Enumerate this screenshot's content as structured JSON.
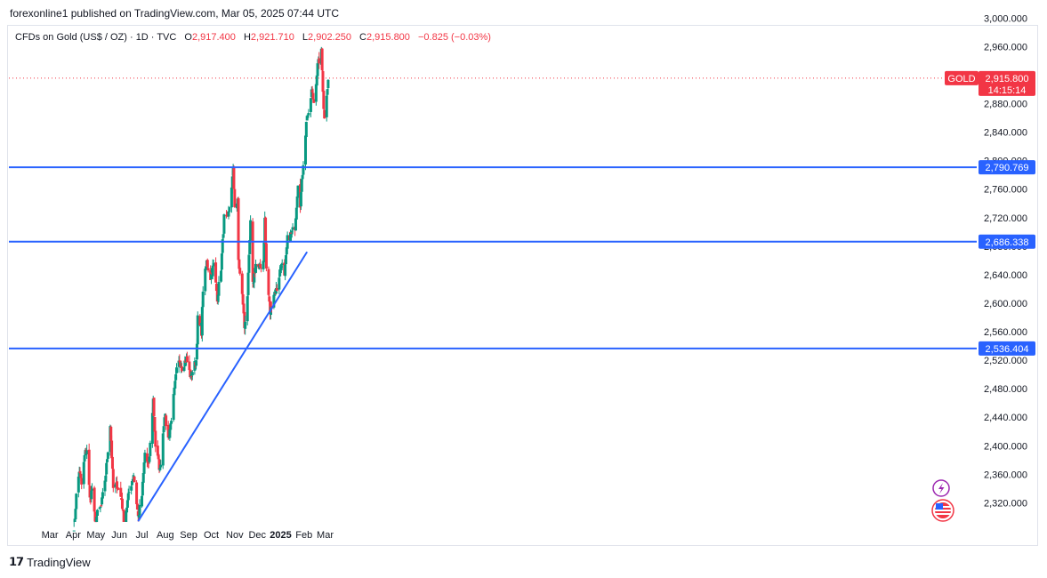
{
  "header": {
    "publisher": "forexonline1 published on TradingView.com, Mar 05, 2025 07:44 UTC"
  },
  "legend": {
    "symbol": "CFDs on Gold (US$ / OZ) · 1D · TVC",
    "o_label": "O",
    "o_value": "2,917.400",
    "h_label": "H",
    "h_value": "2,921.710",
    "l_label": "L",
    "l_value": "2,902.250",
    "c_label": "C",
    "c_value": "2,915.800",
    "change": "−0.825 (−0.03%)"
  },
  "footer": {
    "brand": "TradingView"
  },
  "colors": {
    "up": "#089981",
    "down": "#f23645",
    "level": "#2962ff",
    "level_tag": "#2962ff",
    "price_tag": "#f23645"
  },
  "chart_data": {
    "type": "candlestick",
    "instrument": "GOLD",
    "y_ticks": [
      3000,
      2960,
      2920,
      2880,
      2840,
      2800,
      2760,
      2720,
      2680,
      2640,
      2600,
      2560,
      2520,
      2480,
      2440,
      2400,
      2360,
      2320
    ],
    "y_tick_labels": [
      "3,000.000",
      "2,960.000",
      "2,920.000",
      "2,880.000",
      "2,840.000",
      "2,800.000",
      "2,760.000",
      "2,720.000",
      "2,680.000",
      "2,640.000",
      "2,600.000",
      "2,560.000",
      "2,520.000",
      "2,480.000",
      "2,440.000",
      "2,400.000",
      "2,360.000",
      "2,320.000"
    ],
    "ylim": [
      2293,
      3008
    ],
    "x_labels": [
      "Mar",
      "Apr",
      "May",
      "Jun",
      "Jul",
      "Aug",
      "Sep",
      "Oct",
      "Nov",
      "Dec",
      "2025",
      "Feb",
      "Mar"
    ],
    "horizontal_levels": [
      {
        "value": 2790.769,
        "label": "2,790.769"
      },
      {
        "value": 2686.338,
        "label": "2,686.338"
      },
      {
        "value": 2536.404,
        "label": "2,536.404"
      }
    ],
    "trendline": {
      "from": {
        "date": "2024-06-26",
        "price": 2294
      },
      "to": {
        "date": "2025-02-05",
        "price": 2672
      }
    },
    "last_price": {
      "symbol": "GOLD",
      "value": 2915.8,
      "label": "2,915.800",
      "countdown": "14:15:14"
    },
    "anchors": [
      [
        "2024-04-01",
        2252
      ],
      [
        "2024-04-03",
        2300
      ],
      [
        "2024-04-05",
        2330
      ],
      [
        "2024-04-09",
        2365
      ],
      [
        "2024-04-12",
        2345
      ],
      [
        "2024-04-16",
        2385
      ],
      [
        "2024-04-19",
        2395
      ],
      [
        "2024-04-23",
        2325
      ],
      [
        "2024-04-26",
        2340
      ],
      [
        "2024-04-30",
        2290
      ],
      [
        "2024-05-03",
        2305
      ],
      [
        "2024-05-08",
        2315
      ],
      [
        "2024-05-14",
        2360
      ],
      [
        "2024-05-20",
        2430
      ],
      [
        "2024-05-24",
        2340
      ],
      [
        "2024-05-29",
        2345
      ],
      [
        "2024-06-04",
        2325
      ],
      [
        "2024-06-07",
        2295
      ],
      [
        "2024-06-11",
        2315
      ],
      [
        "2024-06-14",
        2335
      ],
      [
        "2024-06-20",
        2360
      ],
      [
        "2024-06-26",
        2300
      ],
      [
        "2024-07-01",
        2330
      ],
      [
        "2024-07-05",
        2390
      ],
      [
        "2024-07-10",
        2370
      ],
      [
        "2024-07-16",
        2465
      ],
      [
        "2024-07-19",
        2400
      ],
      [
        "2024-07-25",
        2365
      ],
      [
        "2024-07-31",
        2445
      ],
      [
        "2024-08-05",
        2410
      ],
      [
        "2024-08-08",
        2430
      ],
      [
        "2024-08-16",
        2505
      ],
      [
        "2024-08-20",
        2520
      ],
      [
        "2024-08-23",
        2510
      ],
      [
        "2024-08-29",
        2522
      ],
      [
        "2024-09-04",
        2495
      ],
      [
        "2024-09-06",
        2505
      ],
      [
        "2024-09-11",
        2520
      ],
      [
        "2024-09-13",
        2578
      ],
      [
        "2024-09-18",
        2560
      ],
      [
        "2024-09-20",
        2620
      ],
      [
        "2024-09-25",
        2658
      ],
      [
        "2024-09-30",
        2636
      ],
      [
        "2024-10-04",
        2654
      ],
      [
        "2024-10-09",
        2608
      ],
      [
        "2024-10-14",
        2650
      ],
      [
        "2024-10-18",
        2720
      ],
      [
        "2024-10-23",
        2716
      ],
      [
        "2024-10-30",
        2785
      ],
      [
        "2024-11-01",
        2738
      ],
      [
        "2024-11-05",
        2742
      ],
      [
        "2024-11-06",
        2660
      ],
      [
        "2024-11-12",
        2600
      ],
      [
        "2024-11-14",
        2566
      ],
      [
        "2024-11-18",
        2612
      ],
      [
        "2024-11-22",
        2712
      ],
      [
        "2024-11-25",
        2625
      ],
      [
        "2024-11-29",
        2655
      ],
      [
        "2024-12-04",
        2648
      ],
      [
        "2024-12-09",
        2660
      ],
      [
        "2024-12-11",
        2718
      ],
      [
        "2024-12-13",
        2648
      ],
      [
        "2024-12-18",
        2587
      ],
      [
        "2024-12-23",
        2614
      ],
      [
        "2024-12-27",
        2620
      ],
      [
        "2025-01-02",
        2658
      ],
      [
        "2025-01-06",
        2635
      ],
      [
        "2025-01-10",
        2690
      ],
      [
        "2025-01-15",
        2697
      ],
      [
        "2025-01-20",
        2708
      ],
      [
        "2025-01-24",
        2770
      ],
      [
        "2025-01-27",
        2740
      ],
      [
        "2025-01-31",
        2798
      ],
      [
        "2025-02-05",
        2866
      ],
      [
        "2025-02-07",
        2861
      ],
      [
        "2025-02-11",
        2898
      ],
      [
        "2025-02-14",
        2882
      ],
      [
        "2025-02-19",
        2933
      ],
      [
        "2025-02-24",
        2952
      ],
      [
        "2025-02-27",
        2876
      ],
      [
        "2025-02-28",
        2858
      ],
      [
        "2025-03-03",
        2895
      ],
      [
        "2025-03-05",
        2916
      ]
    ]
  }
}
